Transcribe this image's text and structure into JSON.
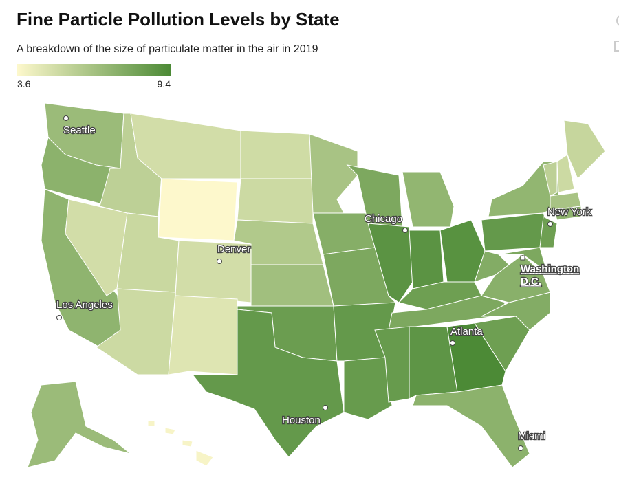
{
  "header": {
    "title": "Fine Particle Pollution Levels by State",
    "subtitle": "A breakdown of the size of particulate matter in the air in 2019"
  },
  "legend": {
    "min": 3.6,
    "max": 9.4,
    "colors": [
      "#fdf8cc",
      "#4c8a36"
    ]
  },
  "map": {
    "values": [
      6.8,
      7.3,
      7.2,
      5.0,
      5.7,
      5.0,
      3.6,
      5.3,
      5.0,
      5.2,
      4.6,
      5.1,
      5.2,
      6.1,
      6.6,
      8.4,
      8.6,
      6.4,
      7.5,
      7.8,
      8.6,
      8.5,
      7.8,
      8.9,
      7.1,
      8.9,
      9.0,
      8.3,
      7.8,
      8.5,
      8.8,
      9.4,
      7.3,
      8.3,
      7.6,
      7.4,
      7.6,
      8.6,
      7.1,
      8.3,
      7.8,
      5.7,
      5.2,
      5.4,
      6.4,
      7.2,
      6.8,
      3.8
    ]
  },
  "cities": [
    [
      "Seattle"
    ],
    [
      "Denver"
    ],
    [
      "Los Angeles"
    ],
    [
      "Chicago"
    ],
    [
      "New York"
    ],
    [
      "Washington",
      "D.C."
    ],
    [
      "Atlanta"
    ],
    [
      "Houston"
    ],
    [
      "Miami"
    ]
  ]
}
